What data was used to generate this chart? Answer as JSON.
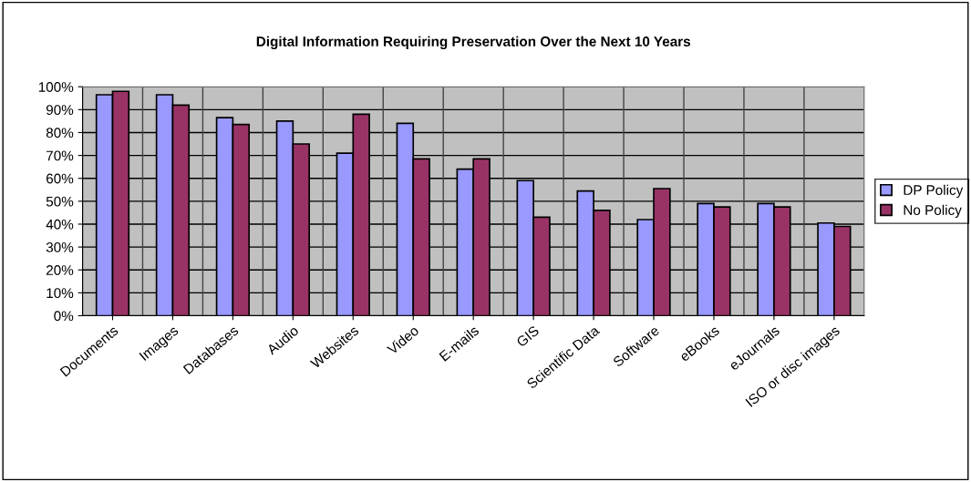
{
  "chart_data": {
    "type": "bar",
    "title": "Digital Information Requiring Preservation Over the Next 10 Years",
    "categories": [
      "Documents",
      "Images",
      "Databases",
      "Audio",
      "Websites",
      "Video",
      "E-mails",
      "GIS",
      "Scientific Data",
      "Software",
      "eBooks",
      "eJournals",
      "ISO or disc images"
    ],
    "series": [
      {
        "name": "DP Policy",
        "color": "#9999ff",
        "values": [
          96.5,
          96.5,
          86.5,
          85,
          71,
          84,
          64,
          59,
          54.5,
          42,
          49,
          49,
          40.5
        ]
      },
      {
        "name": "No Policy",
        "color": "#993366",
        "values": [
          98,
          92,
          83.5,
          75,
          88,
          68.5,
          68.5,
          43,
          46,
          55.5,
          47.5,
          47.5,
          39
        ]
      }
    ],
    "ylim": [
      0,
      100
    ],
    "yticks": [
      {
        "value": 0,
        "label": "0%"
      },
      {
        "value": 10,
        "label": "10%"
      },
      {
        "value": 20,
        "label": "20%"
      },
      {
        "value": 30,
        "label": "30%"
      },
      {
        "value": 40,
        "label": "40%"
      },
      {
        "value": 50,
        "label": "50%"
      },
      {
        "value": 60,
        "label": "60%"
      },
      {
        "value": 70,
        "label": "70%"
      },
      {
        "value": 80,
        "label": "80%"
      },
      {
        "value": 90,
        "label": "90%"
      },
      {
        "value": 100,
        "label": "100%"
      }
    ],
    "grid": true,
    "legend": "right"
  }
}
